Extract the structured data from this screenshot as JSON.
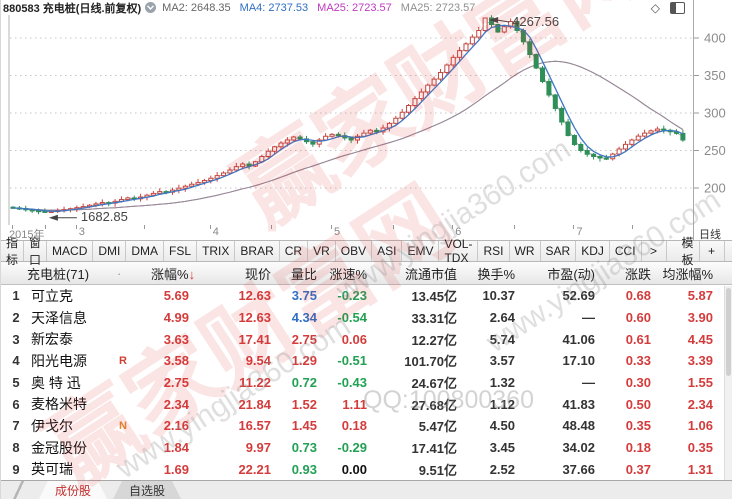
{
  "titlebar": {
    "symbol_code": "880583",
    "symbol_name": "充电桩(日线.前复权)"
  },
  "chart_data": {
    "type": "candlestick",
    "title": "880583 充电桩(日线.前复权)",
    "period_label": "日线",
    "y_axis_ticks": [
      400,
      350,
      300,
      250,
      200
    ],
    "ylim_points": [
      1500,
      4300
    ],
    "x_axis_labels": [
      "2015年",
      "3",
      "4",
      "5",
      "6",
      "7"
    ],
    "month_start_indices": [
      0,
      10,
      31,
      50,
      69,
      88
    ],
    "grid": "dotted-horizontal",
    "legend_position": "top",
    "annotations": {
      "high": "4267.56",
      "low": "1682.85"
    },
    "moving_averages": [
      {
        "name": "MA2",
        "value": "2648.35",
        "color": "#666666",
        "period": 2
      },
      {
        "name": "MA4",
        "value": "2737.53",
        "color": "#2f6fc4",
        "period": 4
      },
      {
        "name": "MA25",
        "value": "2723.57",
        "color": "#c03ac0",
        "period": 25
      },
      {
        "name": "MA25",
        "value": "2723.57",
        "color": "#8f8f8f",
        "period": 25
      }
    ],
    "closes": [
      1735,
      1725,
      1710,
      1700,
      1690,
      1683,
      1690,
      1702,
      1712,
      1724,
      1738,
      1752,
      1770,
      1788,
      1806,
      1798,
      1822,
      1846,
      1868,
      1856,
      1880,
      1904,
      1928,
      1952,
      1944,
      1972,
      1998,
      2024,
      2050,
      2075,
      2100,
      2130,
      2165,
      2200,
      2240,
      2285,
      2320,
      2292,
      2350,
      2420,
      2490,
      2550,
      2600,
      2640,
      2680,
      2655,
      2618,
      2585,
      2640,
      2690,
      2715,
      2698,
      2668,
      2640,
      2690,
      2732,
      2770,
      2748,
      2800,
      2862,
      2930,
      3010,
      3100,
      3192,
      3280,
      3372,
      3452,
      3540,
      3640,
      3742,
      3832,
      3922,
      4012,
      4100,
      4267,
      4180,
      4080,
      4150,
      4220,
      4100,
      3950,
      3780,
      3600,
      3420,
      3240,
      3060,
      2880,
      2700,
      2580,
      2500,
      2450,
      2420,
      2400,
      2390,
      2452,
      2520,
      2582,
      2640,
      2692,
      2732,
      2762,
      2786,
      2770,
      2750,
      2728,
      2640
    ]
  },
  "indicator_bar": {
    "items": [
      "指标",
      "窗口",
      "MACD",
      "DMI",
      "DMA",
      "FSL",
      "TRIX",
      "BRAR",
      "CR",
      "VR",
      "OBV",
      "ASI",
      "EMV",
      "VOL-TDX",
      "RSI",
      "WR",
      "SAR",
      "KDJ",
      "CCI",
      ">"
    ],
    "right_items": [
      "模板",
      "+",
      "-"
    ]
  },
  "table": {
    "title": "充电桩(71)",
    "sort_dot": "·",
    "headers": {
      "change_pct": "涨幅%",
      "price": "现价",
      "volume_ratio": "量比",
      "speed": "涨速%",
      "market_cap": "流通市值",
      "turnover": "换手%",
      "pe": "市盈(动)",
      "change": "涨跌",
      "avg_change": "均涨幅%"
    },
    "rows": [
      {
        "idx": "1",
        "name": "可立克",
        "tag": "",
        "tag_color": "",
        "change_pct": "5.69",
        "price": "12.63",
        "volume_ratio": "3.75",
        "vr_color": "blue",
        "speed": "-0.23",
        "speed_color": "green",
        "market_cap": "13.45亿",
        "turnover": "10.37",
        "pe": "52.69",
        "change": "0.68",
        "avg_change": "5.87"
      },
      {
        "idx": "2",
        "name": "天泽信息",
        "tag": "",
        "tag_color": "",
        "change_pct": "4.99",
        "price": "12.63",
        "volume_ratio": "4.34",
        "vr_color": "blue",
        "speed": "-0.54",
        "speed_color": "green",
        "market_cap": "33.31亿",
        "turnover": "2.64",
        "pe": "—",
        "change": "0.60",
        "avg_change": "3.90"
      },
      {
        "idx": "3",
        "name": "新宏泰",
        "tag": "",
        "tag_color": "",
        "change_pct": "3.63",
        "price": "17.41",
        "volume_ratio": "2.75",
        "vr_color": "red",
        "speed": "0.06",
        "speed_color": "red",
        "market_cap": "12.27亿",
        "turnover": "5.74",
        "pe": "41.06",
        "change": "0.61",
        "avg_change": "4.45"
      },
      {
        "idx": "4",
        "name": "阳光电源",
        "tag": "R",
        "tag_color": "red",
        "change_pct": "3.58",
        "price": "9.54",
        "volume_ratio": "1.29",
        "vr_color": "red",
        "speed": "-0.51",
        "speed_color": "green",
        "market_cap": "101.70亿",
        "turnover": "3.57",
        "pe": "17.10",
        "change": "0.33",
        "avg_change": "3.39"
      },
      {
        "idx": "5",
        "name": "奥 特 迅",
        "tag": "",
        "tag_color": "",
        "change_pct": "2.75",
        "price": "11.22",
        "volume_ratio": "0.72",
        "vr_color": "green",
        "speed": "-0.43",
        "speed_color": "green",
        "market_cap": "24.67亿",
        "turnover": "1.32",
        "pe": "—",
        "change": "0.30",
        "avg_change": "1.55"
      },
      {
        "idx": "6",
        "name": "麦格米特",
        "tag": "",
        "tag_color": "",
        "change_pct": "2.34",
        "price": "21.84",
        "volume_ratio": "1.52",
        "vr_color": "red",
        "speed": "1.11",
        "speed_color": "red",
        "market_cap": "27.68亿",
        "turnover": "1.12",
        "pe": "41.83",
        "change": "0.50",
        "avg_change": "2.34"
      },
      {
        "idx": "7",
        "name": "伊戈尔",
        "tag": "N",
        "tag_color": "orange",
        "change_pct": "2.16",
        "price": "16.57",
        "volume_ratio": "1.45",
        "vr_color": "red",
        "speed": "0.18",
        "speed_color": "red",
        "market_cap": "5.47亿",
        "turnover": "4.50",
        "pe": "48.48",
        "change": "0.35",
        "avg_change": "1.06"
      },
      {
        "idx": "8",
        "name": "金冠股份",
        "tag": "",
        "tag_color": "",
        "change_pct": "1.84",
        "price": "9.97",
        "volume_ratio": "0.73",
        "vr_color": "green",
        "speed": "-0.29",
        "speed_color": "green",
        "market_cap": "17.41亿",
        "turnover": "3.45",
        "pe": "34.02",
        "change": "0.18",
        "avg_change": "0.35"
      },
      {
        "idx": "9",
        "name": "英可瑞",
        "tag": "",
        "tag_color": "",
        "change_pct": "1.69",
        "price": "22.21",
        "volume_ratio": "0.93",
        "vr_color": "green",
        "speed": "0.00",
        "speed_color": "black",
        "market_cap": "9.51亿",
        "turnover": "2.52",
        "pe": "37.66",
        "change": "0.37",
        "avg_change": "1.31"
      }
    ]
  },
  "tabs": [
    {
      "label": "成份股",
      "active": true
    },
    {
      "label": "自选股",
      "active": false
    }
  ],
  "watermarks": {
    "brand": "赢家财富网",
    "url": "www.yingjia360.com",
    "qq": "QQ:100800360"
  },
  "colors": {
    "up_candle": "#c8453f",
    "down_candle": "#2e8f58",
    "table_red": "#d43c3c",
    "table_green": "#22a054",
    "table_blue": "#2f6fc4"
  }
}
